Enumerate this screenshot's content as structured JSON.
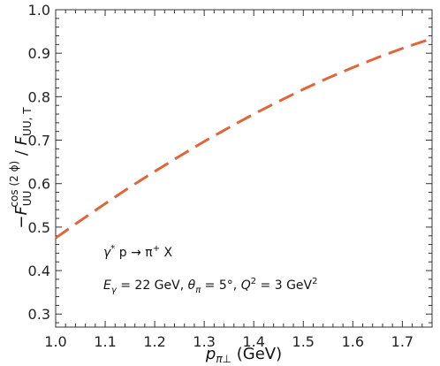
{
  "chart_data": {
    "type": "line",
    "xlabel": "p",
    "xlabel_sub": "π⊥",
    "xlabel_unit": " (GeV)",
    "ylabel_parts": {
      "minus": "−",
      "F1": "F",
      "sub1": "UU",
      "sup1": "cos (2 ϕ)",
      "slash": " / ",
      "F2": "F",
      "sub2": "UU, T"
    },
    "xlim": [
      1.0,
      1.76
    ],
    "ylim": [
      0.27,
      1.0
    ],
    "xticks": [
      "1.0",
      "1.1",
      "1.2",
      "1.3",
      "1.4",
      "1.5",
      "1.6",
      "1.7"
    ],
    "yticks": [
      "0.3",
      "0.4",
      "0.5",
      "0.6",
      "0.7",
      "0.8",
      "0.9",
      "1.0"
    ],
    "grid": false,
    "series": [
      {
        "style": "dashed",
        "color": "#E0663A",
        "x": [
          1.0,
          1.05,
          1.1,
          1.15,
          1.2,
          1.25,
          1.3,
          1.35,
          1.4,
          1.45,
          1.5,
          1.55,
          1.6,
          1.65,
          1.7,
          1.75
        ],
        "y": [
          0.475,
          0.515,
          0.554,
          0.592,
          0.628,
          0.663,
          0.697,
          0.729,
          0.76,
          0.789,
          0.817,
          0.843,
          0.867,
          0.89,
          0.911,
          0.93
        ]
      }
    ],
    "annotations": {
      "line1": {
        "gamma": "γ",
        "star": "*",
        "rest": " p → π",
        "plus": "+",
        "tail": " X"
      },
      "line2": {
        "E": "E",
        "Esub": "γ",
        "Eval": " = 22 GeV, ",
        "theta": "θ",
        "thetasub": "π",
        "thetaval": " = 5°, ",
        "Q": "Q",
        "Qsup": "2",
        "Qval": " = 3 GeV",
        "Qunitsup": "2"
      }
    }
  }
}
